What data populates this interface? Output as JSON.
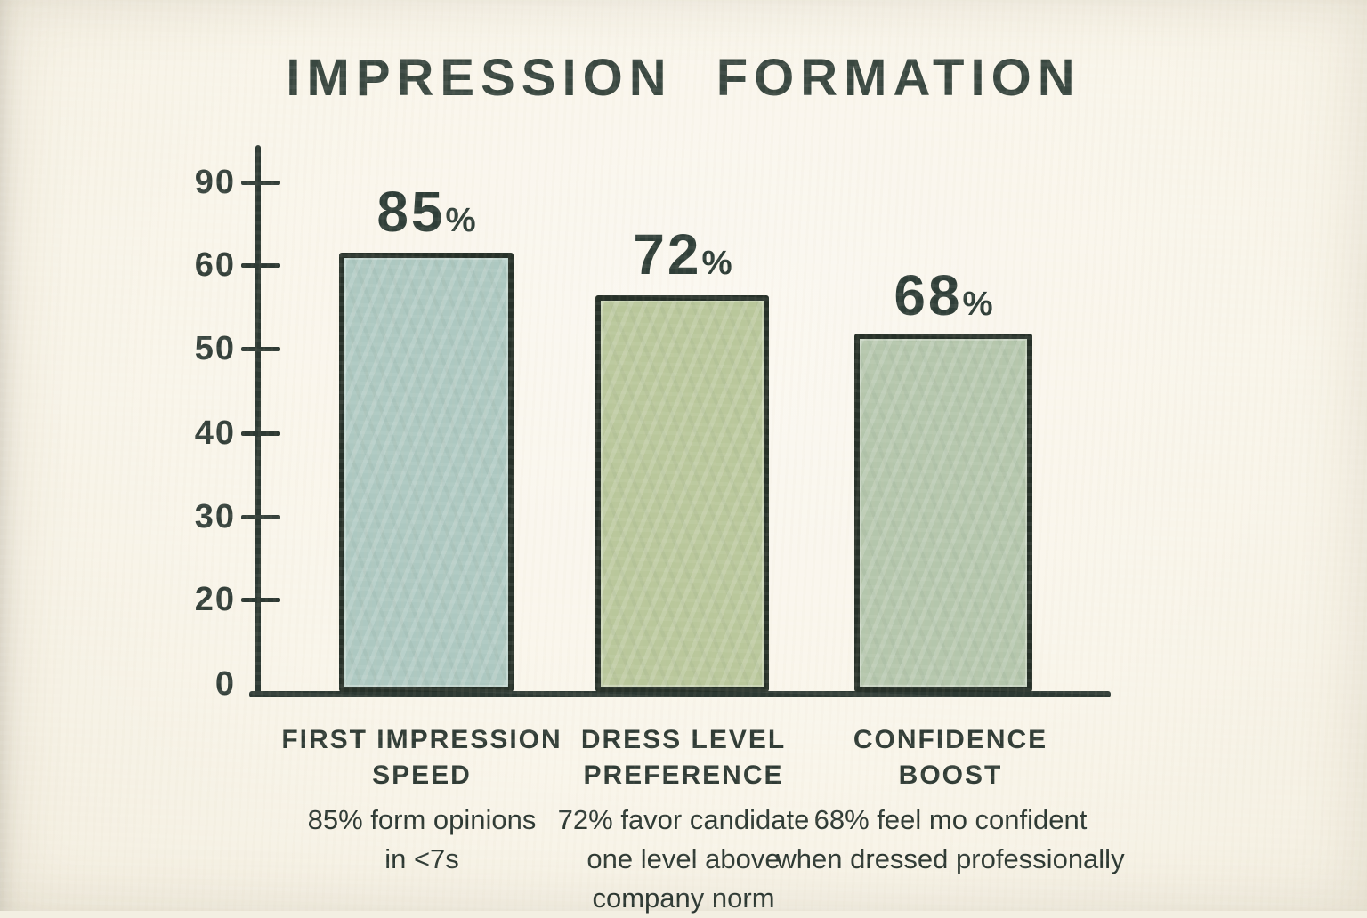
{
  "title": "IMPRESSION FORMATION",
  "colors": {
    "background": "#f9f5ea",
    "ink": "#2f3b35",
    "axis": "#2d3933",
    "bar1_fill": "#adc8c1",
    "bar2_fill": "#b9c79b",
    "bar3_fill": "#b4c6ac"
  },
  "y_axis": {
    "ticks": [
      {
        "label": "90"
      },
      {
        "label": "60"
      },
      {
        "label": "50"
      },
      {
        "label": "40"
      },
      {
        "label": "30"
      },
      {
        "label": "20"
      },
      {
        "label": "0"
      }
    ]
  },
  "bars": [
    {
      "value": "85",
      "unit": "%",
      "name_line1": "FIRST IMPRESSION",
      "name_line2": "SPEED",
      "desc_line1": "85% form opinions",
      "desc_line2": "in <7s",
      "fill": "#adc8c1"
    },
    {
      "value": "72",
      "unit": "%",
      "name_line1": "DRESS LEVEL",
      "name_line2": "PREFERENCE",
      "desc_line1": "72% favor candidate",
      "desc_line2": "one level above",
      "desc_line3": "company norm",
      "fill": "#b9c79b"
    },
    {
      "value": "68",
      "unit": "%",
      "name_line1": "CONFIDENCE",
      "name_line2": "BOOST",
      "desc_line1": "68% feel mo confident",
      "desc_line2": "when dressed professionally",
      "fill": "#b4c6ac"
    }
  ],
  "chart_data": {
    "type": "bar",
    "title": "IMPRESSION FORMATION",
    "categories": [
      "FIRST IMPRESSION SPEED",
      "DRESS LEVEL PREFERENCE",
      "CONFIDENCE BOOST"
    ],
    "values": [
      85,
      72,
      68
    ],
    "value_labels": [
      "85%",
      "72%",
      "68%"
    ],
    "annotations": [
      "85% form opinions in <7s",
      "72% favor candidate one level above company norm",
      "68% feel mo confident when dressed professionally"
    ],
    "xlabel": "",
    "ylabel": "",
    "y_ticks": [
      0,
      20,
      30,
      40,
      50,
      60,
      90
    ],
    "ylim": [
      0,
      95
    ],
    "grid": false,
    "legend": false,
    "bar_colors": [
      "#adc8c1",
      "#b9c79b",
      "#b4c6ac"
    ],
    "style": "hand-drawn infographic on cream paper"
  }
}
